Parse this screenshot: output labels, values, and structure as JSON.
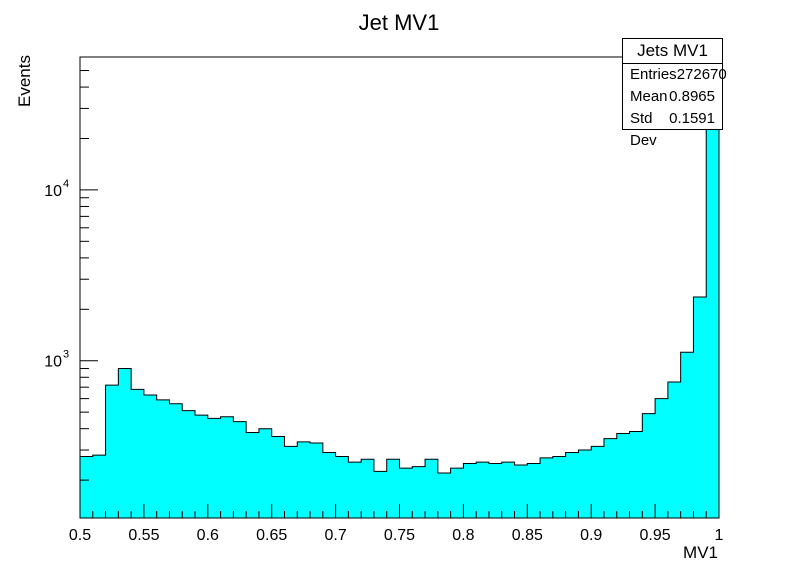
{
  "chart_data": {
    "type": "bar",
    "title": "Jet MV1",
    "xlabel": "MV1",
    "ylabel": "Events",
    "xlim": [
      0.5,
      1.0
    ],
    "ylim": [
      120,
      60000
    ],
    "yscale": "log",
    "fill_color": "#00ffff",
    "line_color": "#000000",
    "x_ticks": [
      0.5,
      0.55,
      0.6,
      0.65,
      0.7,
      0.75,
      0.8,
      0.85,
      0.9,
      0.95,
      1.0
    ],
    "x_tick_labels": [
      "0.5",
      "0.55",
      "0.6",
      "0.65",
      "0.7",
      "0.75",
      "0.8",
      "0.85",
      "0.9",
      "0.95",
      "1"
    ],
    "y_tick_labels": [
      {
        "value": 1000,
        "label": "10",
        "exp": "3"
      },
      {
        "value": 10000,
        "label": "10",
        "exp": "4"
      }
    ],
    "bin_edges_start": 0.5,
    "bin_width": 0.01,
    "values": [
      275,
      280,
      720,
      900,
      680,
      630,
      590,
      560,
      510,
      480,
      460,
      470,
      440,
      380,
      400,
      360,
      315,
      335,
      330,
      290,
      275,
      255,
      265,
      225,
      265,
      235,
      240,
      265,
      220,
      235,
      250,
      255,
      250,
      255,
      245,
      250,
      270,
      275,
      290,
      300,
      315,
      350,
      375,
      385,
      490,
      600,
      750,
      1120,
      2360,
      40000
    ],
    "stats": {
      "title": "Jets MV1",
      "rows": [
        {
          "label": "Entries",
          "value": "272670"
        },
        {
          "label": "Mean",
          "value": "0.8965"
        },
        {
          "label": "Std Dev",
          "value": "0.1591"
        }
      ]
    }
  }
}
